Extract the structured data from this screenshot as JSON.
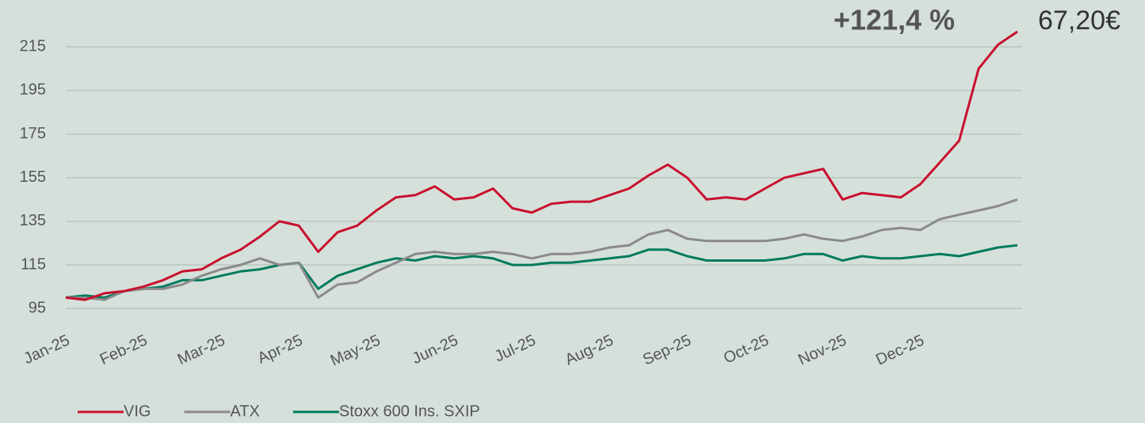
{
  "chart_data": {
    "type": "line",
    "annotations": [
      "+121,4 %",
      "67,20€"
    ],
    "categories": [
      "Jan-25",
      null,
      null,
      null,
      "Feb-25",
      null,
      null,
      null,
      "Mar-25",
      null,
      null,
      null,
      "Apr-25",
      null,
      null,
      null,
      "May-25",
      null,
      null,
      null,
      "Jun-25",
      null,
      null,
      null,
      "Jul-25",
      null,
      null,
      null,
      "Aug-25",
      null,
      null,
      null,
      "Sep-25",
      null,
      null,
      null,
      "Oct-25",
      null,
      null,
      null,
      "Nov-25",
      null,
      null,
      null,
      "Dec-25",
      null,
      null,
      null,
      null,
      null
    ],
    "series": [
      {
        "name": "VIG",
        "color": "#c8102e",
        "values": [
          100,
          99,
          102,
          103,
          105,
          108,
          112,
          113,
          118,
          122,
          128,
          135,
          133,
          121,
          130,
          133,
          140,
          146,
          147,
          151,
          145,
          146,
          150,
          141,
          139,
          143,
          144,
          144,
          147,
          150,
          156,
          161,
          155,
          145,
          146,
          145,
          150,
          155,
          157,
          159,
          145,
          148,
          147,
          146,
          152,
          162,
          172,
          205,
          216,
          222
        ]
      },
      {
        "name": "ATX",
        "color": "#8a8a8a",
        "values": [
          100,
          100,
          99,
          103,
          104,
          104,
          106,
          110,
          113,
          115,
          118,
          115,
          116,
          100,
          106,
          107,
          112,
          116,
          120,
          121,
          120,
          120,
          121,
          120,
          118,
          120,
          120,
          121,
          123,
          124,
          129,
          131,
          127,
          126,
          126,
          126,
          126,
          127,
          129,
          127,
          126,
          128,
          131,
          132,
          131,
          136,
          138,
          140,
          142,
          145
        ]
      },
      {
        "name": "Stoxx 600 Ins. SXIP",
        "color": "#007a5e",
        "values": [
          100,
          101,
          100,
          103,
          104,
          105,
          108,
          108,
          110,
          112,
          113,
          115,
          116,
          104,
          110,
          113,
          116,
          118,
          117,
          119,
          118,
          119,
          118,
          115,
          115,
          116,
          116,
          117,
          118,
          119,
          122,
          122,
          119,
          117,
          117,
          117,
          117,
          118,
          120,
          120,
          117,
          119,
          118,
          118,
          119,
          120,
          119,
          121,
          123,
          124
        ]
      }
    ],
    "ylim": [
      90,
      222
    ],
    "yticks": [
      95,
      115,
      135,
      155,
      175,
      195,
      215
    ],
    "grid": true
  }
}
